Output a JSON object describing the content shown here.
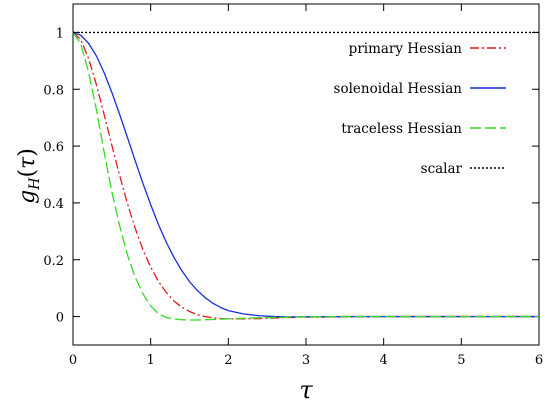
{
  "chart_data": {
    "type": "line",
    "title": "",
    "xlabel": "τ",
    "ylabel": "g_H(τ)",
    "xlim": [
      0,
      6
    ],
    "ylim": [
      -0.1,
      1.1
    ],
    "xticks": [
      0,
      1,
      2,
      3,
      4,
      5,
      6
    ],
    "yticks": [
      0,
      0.2,
      0.4,
      0.6,
      0.8,
      1
    ],
    "grid": false,
    "legend_position": "top-right",
    "series": [
      {
        "name": "primary Hessian",
        "color": "#e41a1c",
        "dash": "dash-dot",
        "x": [
          0,
          0.1,
          0.2,
          0.3,
          0.4,
          0.5,
          0.6,
          0.7,
          0.8,
          0.9,
          1.0,
          1.1,
          1.2,
          1.3,
          1.4,
          1.5,
          1.6,
          1.7,
          1.8,
          1.9,
          2.0,
          2.2,
          2.4,
          2.6,
          2.8,
          3.0,
          3.5,
          4.0,
          5.0,
          6.0
        ],
        "y": [
          1.0,
          0.975,
          0.909,
          0.817,
          0.712,
          0.603,
          0.497,
          0.399,
          0.311,
          0.236,
          0.174,
          0.124,
          0.085,
          0.055,
          0.033,
          0.018,
          0.007,
          0.0,
          -0.004,
          -0.007,
          -0.008,
          -0.008,
          -0.007,
          -0.005,
          -0.003,
          -0.002,
          -0.001,
          0.0,
          0.0,
          0.0
        ]
      },
      {
        "name": "solenoidal Hessian",
        "color": "#1a2ed8",
        "dash": "solid",
        "x": [
          0,
          0.1,
          0.2,
          0.3,
          0.4,
          0.5,
          0.6,
          0.7,
          0.8,
          0.9,
          1.0,
          1.1,
          1.2,
          1.3,
          1.4,
          1.5,
          1.6,
          1.7,
          1.8,
          1.9,
          2.0,
          2.2,
          2.4,
          2.6,
          2.8,
          3.0,
          3.2,
          3.5,
          4.0,
          5.0,
          6.0
        ],
        "y": [
          1.0,
          0.99,
          0.962,
          0.918,
          0.859,
          0.789,
          0.712,
          0.631,
          0.549,
          0.469,
          0.394,
          0.324,
          0.262,
          0.208,
          0.162,
          0.123,
          0.092,
          0.067,
          0.047,
          0.032,
          0.021,
          0.009,
          0.003,
          0.0,
          -0.001,
          -0.001,
          -0.001,
          0.0,
          0.0,
          0.0,
          0.0
        ]
      },
      {
        "name": "traceless Hessian",
        "color": "#32dc1e",
        "dash": "long-dash",
        "x": [
          0,
          0.1,
          0.2,
          0.3,
          0.4,
          0.5,
          0.6,
          0.7,
          0.8,
          0.9,
          1.0,
          1.1,
          1.2,
          1.3,
          1.4,
          1.5,
          1.6,
          1.7,
          1.8,
          1.9,
          2.0,
          2.2,
          2.4,
          2.6,
          2.8,
          3.0,
          3.5,
          4.0,
          5.0,
          6.0
        ],
        "y": [
          1.0,
          0.96,
          0.86,
          0.73,
          0.58,
          0.44,
          0.32,
          0.218,
          0.139,
          0.08,
          0.038,
          0.01,
          -0.003,
          -0.008,
          -0.011,
          -0.012,
          -0.012,
          -0.011,
          -0.01,
          -0.009,
          -0.008,
          -0.006,
          -0.004,
          -0.003,
          -0.002,
          -0.001,
          0.0,
          0.0,
          0.0,
          0.0
        ]
      },
      {
        "name": "scalar",
        "color": "#000000",
        "dash": "dotted",
        "x": [
          0,
          6
        ],
        "y": [
          1,
          1
        ]
      }
    ]
  }
}
